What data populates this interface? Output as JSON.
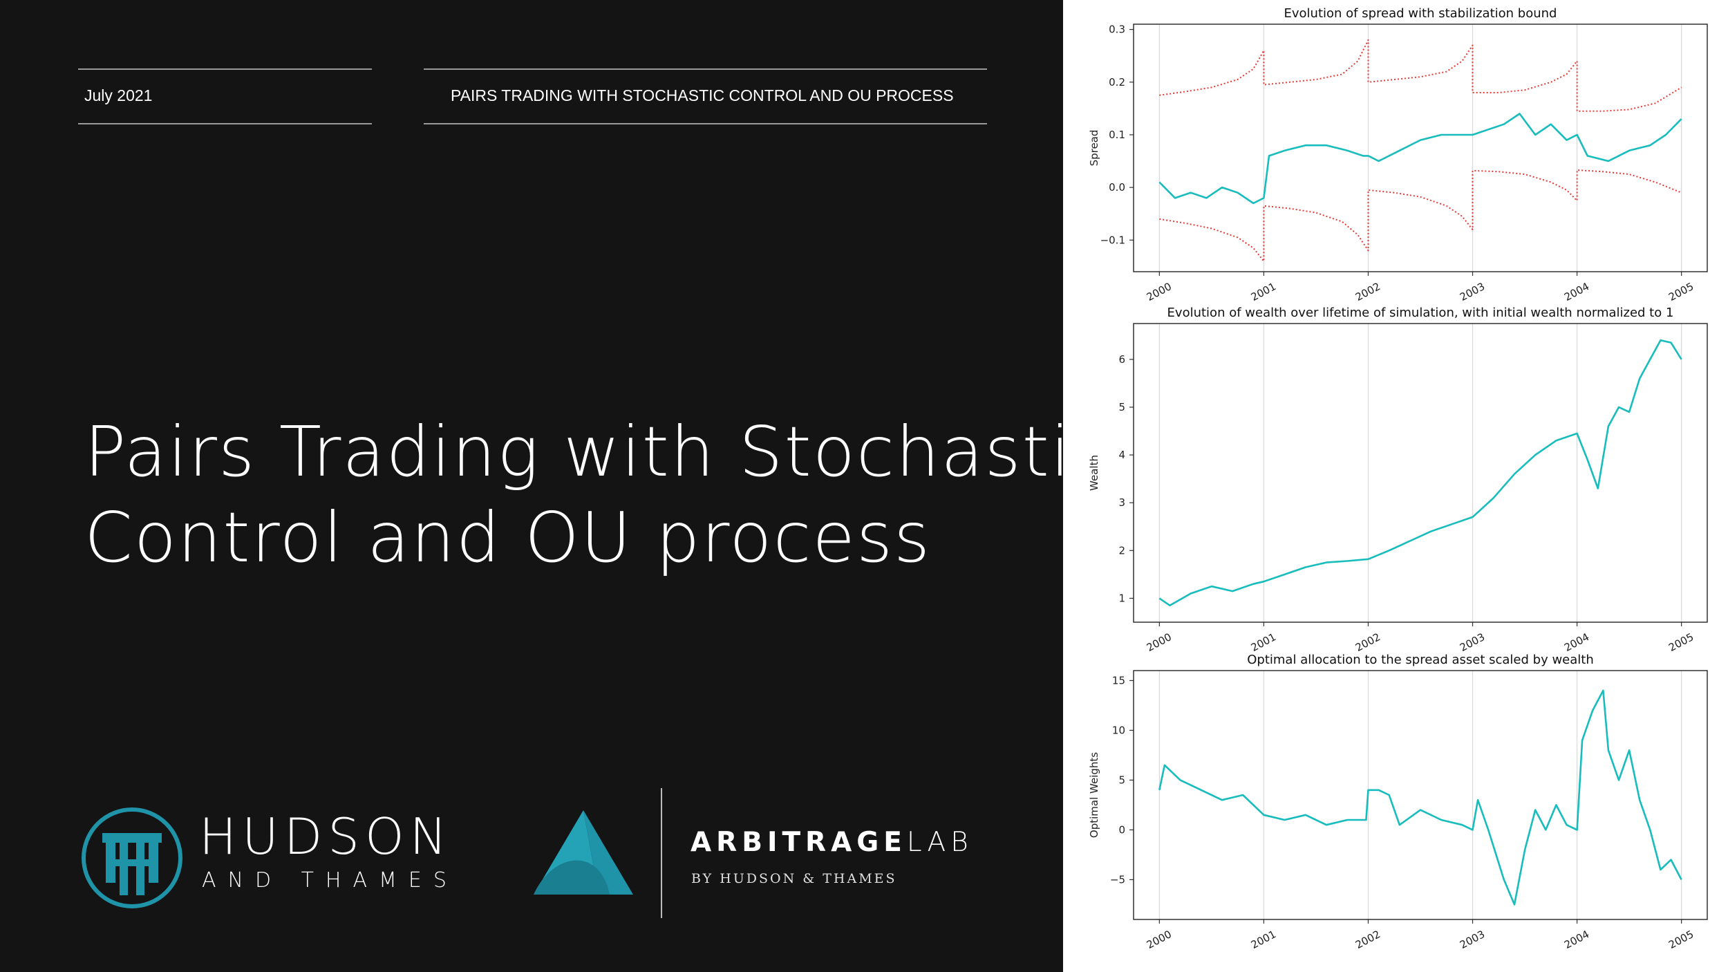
{
  "header": {
    "date": "July 2021",
    "topic": "PAIRS TRADING WITH STOCHASTIC CONTROL AND OU PROCESS"
  },
  "title_lines": [
    "Pairs Trading with Stochastic",
    "Control and OU process"
  ],
  "brand_hudson": {
    "line1": "HUDSON",
    "line2": "AND THAMES",
    "color": "#1f93a8"
  },
  "brand_arbitrage": {
    "name_bold": "ARBITRAGE",
    "name_light": "LAB",
    "byline": "BY HUDSON & THAMES",
    "color": "#1f93a8"
  },
  "colors": {
    "series": "#17bcbc",
    "bound": "#e53935",
    "background": "#141414"
  },
  "chart_data": [
    {
      "type": "line",
      "title": "Evolution of spread with stabilization bound",
      "xlabel": "",
      "ylabel": "Spread",
      "xlim": [
        2000,
        2005
      ],
      "ylim": [
        -0.16,
        0.31
      ],
      "xticks": [
        "2000",
        "2001",
        "2002",
        "2003",
        "2004",
        "2005"
      ],
      "yticks": [
        -0.1,
        0.0,
        0.1,
        0.2,
        0.3
      ],
      "ytick_labels": [
        "−0.1",
        "0.0",
        "0.1",
        "0.2",
        "0.3"
      ],
      "grid": "vertical",
      "series": [
        {
          "style": "solid",
          "color": "#17bcbc",
          "x": [
            2000.0,
            2000.15,
            2000.3,
            2000.45,
            2000.6,
            2000.75,
            2000.9,
            2001.0,
            2001.05,
            2001.2,
            2001.4,
            2001.6,
            2001.8,
            2001.95,
            2002.0,
            2002.1,
            2002.3,
            2002.5,
            2002.7,
            2002.9,
            2003.0,
            2003.15,
            2003.3,
            2003.45,
            2003.6,
            2003.75,
            2003.9,
            2004.0,
            2004.1,
            2004.3,
            2004.5,
            2004.7,
            2004.85,
            2005.0
          ],
          "y": [
            0.01,
            -0.02,
            -0.01,
            -0.02,
            0.0,
            -0.01,
            -0.03,
            -0.02,
            0.06,
            0.07,
            0.08,
            0.08,
            0.07,
            0.06,
            0.06,
            0.05,
            0.07,
            0.09,
            0.1,
            0.1,
            0.1,
            0.11,
            0.12,
            0.14,
            0.1,
            0.12,
            0.09,
            0.1,
            0.06,
            0.05,
            0.07,
            0.08,
            0.1,
            0.13
          ]
        },
        {
          "style": "dotted",
          "color": "#e53935",
          "x": [
            2000.0,
            2000.25,
            2000.5,
            2000.75,
            2000.9,
            2001.0,
            2001.0,
            2001.25,
            2001.5,
            2001.75,
            2001.9,
            2002.0,
            2002.0,
            2002.25,
            2002.5,
            2002.75,
            2002.9,
            2003.0,
            2003.0,
            2003.25,
            2003.5,
            2003.75,
            2003.9,
            2004.0,
            2004.0,
            2004.25,
            2004.5,
            2004.75,
            2005.0
          ],
          "y": [
            0.175,
            0.182,
            0.19,
            0.205,
            0.225,
            0.26,
            0.195,
            0.2,
            0.205,
            0.215,
            0.24,
            0.28,
            0.2,
            0.205,
            0.21,
            0.22,
            0.24,
            0.27,
            0.18,
            0.18,
            0.185,
            0.2,
            0.215,
            0.24,
            0.145,
            0.145,
            0.148,
            0.16,
            0.19
          ]
        },
        {
          "style": "dotted",
          "color": "#e53935",
          "x": [
            2000.0,
            2000.25,
            2000.5,
            2000.75,
            2000.9,
            2001.0,
            2001.0,
            2001.25,
            2001.5,
            2001.75,
            2001.9,
            2002.0,
            2002.0,
            2002.25,
            2002.5,
            2002.75,
            2002.9,
            2003.0,
            2003.0,
            2003.25,
            2003.5,
            2003.75,
            2003.9,
            2004.0,
            2004.0,
            2004.25,
            2004.5,
            2004.75,
            2005.0
          ],
          "y": [
            -0.06,
            -0.068,
            -0.078,
            -0.095,
            -0.115,
            -0.14,
            -0.035,
            -0.04,
            -0.048,
            -0.065,
            -0.09,
            -0.12,
            -0.005,
            -0.01,
            -0.018,
            -0.035,
            -0.055,
            -0.08,
            0.032,
            0.03,
            0.025,
            0.01,
            -0.005,
            -0.025,
            0.033,
            0.03,
            0.025,
            0.01,
            -0.01
          ]
        }
      ]
    },
    {
      "type": "line",
      "title": "Evolution of wealth over lifetime of simulation, with initial wealth normalized to 1",
      "xlabel": "",
      "ylabel": "Wealth",
      "xlim": [
        2000,
        2005
      ],
      "ylim": [
        0.5,
        6.75
      ],
      "xticks": [
        "2000",
        "2001",
        "2002",
        "2003",
        "2004",
        "2005"
      ],
      "yticks": [
        1,
        2,
        3,
        4,
        5,
        6
      ],
      "ytick_labels": [
        "1",
        "2",
        "3",
        "4",
        "5",
        "6"
      ],
      "grid": "vertical",
      "series": [
        {
          "style": "solid",
          "color": "#17bcbc",
          "x": [
            2000.0,
            2000.1,
            2000.3,
            2000.5,
            2000.7,
            2000.9,
            2001.0,
            2001.2,
            2001.4,
            2001.6,
            2001.8,
            2002.0,
            2002.2,
            2002.4,
            2002.6,
            2002.8,
            2003.0,
            2003.2,
            2003.4,
            2003.6,
            2003.8,
            2004.0,
            2004.1,
            2004.2,
            2004.3,
            2004.4,
            2004.5,
            2004.6,
            2004.7,
            2004.8,
            2004.9,
            2005.0
          ],
          "y": [
            1.0,
            0.85,
            1.1,
            1.25,
            1.15,
            1.3,
            1.35,
            1.5,
            1.65,
            1.75,
            1.78,
            1.82,
            2.0,
            2.2,
            2.4,
            2.55,
            2.7,
            3.1,
            3.6,
            4.0,
            4.3,
            4.45,
            3.9,
            3.3,
            4.6,
            5.0,
            4.9,
            5.6,
            6.0,
            6.4,
            6.35,
            6.0
          ]
        }
      ]
    },
    {
      "type": "line",
      "title": "Optimal allocation to the spread asset scaled by wealth",
      "xlabel": "",
      "ylabel": "Optimal Weights",
      "xlim": [
        2000,
        2005
      ],
      "ylim": [
        -9,
        16
      ],
      "xticks": [
        "2000",
        "2001",
        "2002",
        "2003",
        "2004",
        "2005"
      ],
      "yticks": [
        -5,
        0,
        5,
        10,
        15
      ],
      "ytick_labels": [
        "−5",
        "0",
        "5",
        "10",
        "15"
      ],
      "grid": "vertical",
      "series": [
        {
          "style": "solid",
          "color": "#17bcbc",
          "x": [
            2000.0,
            2000.05,
            2000.2,
            2000.4,
            2000.6,
            2000.8,
            2001.0,
            2001.2,
            2001.4,
            2001.6,
            2001.8,
            2001.98,
            2002.0,
            2002.1,
            2002.2,
            2002.3,
            2002.5,
            2002.7,
            2002.9,
            2003.0,
            2003.05,
            2003.15,
            2003.3,
            2003.4,
            2003.5,
            2003.6,
            2003.7,
            2003.8,
            2003.9,
            2004.0,
            2004.05,
            2004.15,
            2004.25,
            2004.3,
            2004.4,
            2004.5,
            2004.6,
            2004.7,
            2004.8,
            2004.9,
            2005.0
          ],
          "y": [
            4.0,
            6.5,
            5.0,
            4.0,
            3.0,
            3.5,
            1.5,
            1.0,
            1.5,
            0.5,
            1.0,
            1.0,
            4.0,
            4.0,
            3.5,
            0.5,
            2.0,
            1.0,
            0.5,
            0.0,
            3.0,
            0.0,
            -5.0,
            -7.5,
            -2.0,
            2.0,
            0.0,
            2.5,
            0.5,
            0.0,
            9.0,
            12.0,
            14.0,
            8.0,
            5.0,
            8.0,
            3.0,
            0.0,
            -4.0,
            -3.0,
            -5.0
          ]
        }
      ]
    }
  ]
}
